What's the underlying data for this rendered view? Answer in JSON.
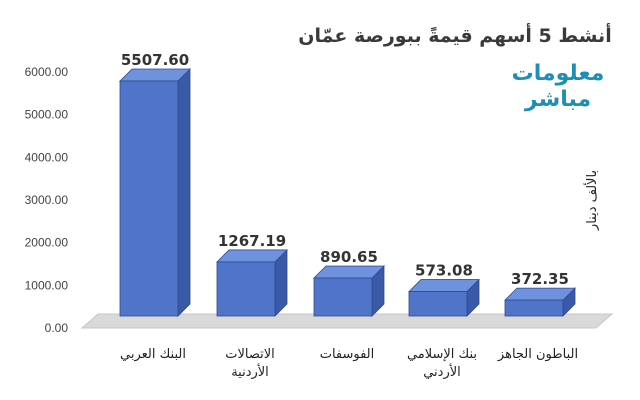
{
  "chart_data": {
    "type": "bar",
    "title": "أنشط 5 أسهم قيمةً ببورصة عمّان",
    "ylabel": "بالألف دينار",
    "ylim": [
      0,
      6000
    ],
    "yticks": [
      "0.00",
      "1000.00",
      "2000.00",
      "3000.00",
      "4000.00",
      "5000.00",
      "6000.00"
    ],
    "grid": false,
    "categories": [
      [
        "البنك العربي"
      ],
      [
        "الاتصالات",
        "الأردنية"
      ],
      [
        "الفوسفات"
      ],
      [
        "بنك الإسلامي",
        "الأردني"
      ],
      [
        "الباطون الجاهز"
      ]
    ],
    "values": [
      5507.6,
      1267.19,
      890.65,
      573.08,
      372.35
    ],
    "value_labels": [
      "5507.60",
      "1267.19",
      "890.65",
      "573.08",
      "372.35"
    ],
    "bar_color": "#4f74c9",
    "bar_side_color": "#3a59a6",
    "bar_top_color": "#6f92de"
  },
  "logo": {
    "line1": "معلومات",
    "line2": "مباشر",
    "color": "#1d8fb5"
  }
}
